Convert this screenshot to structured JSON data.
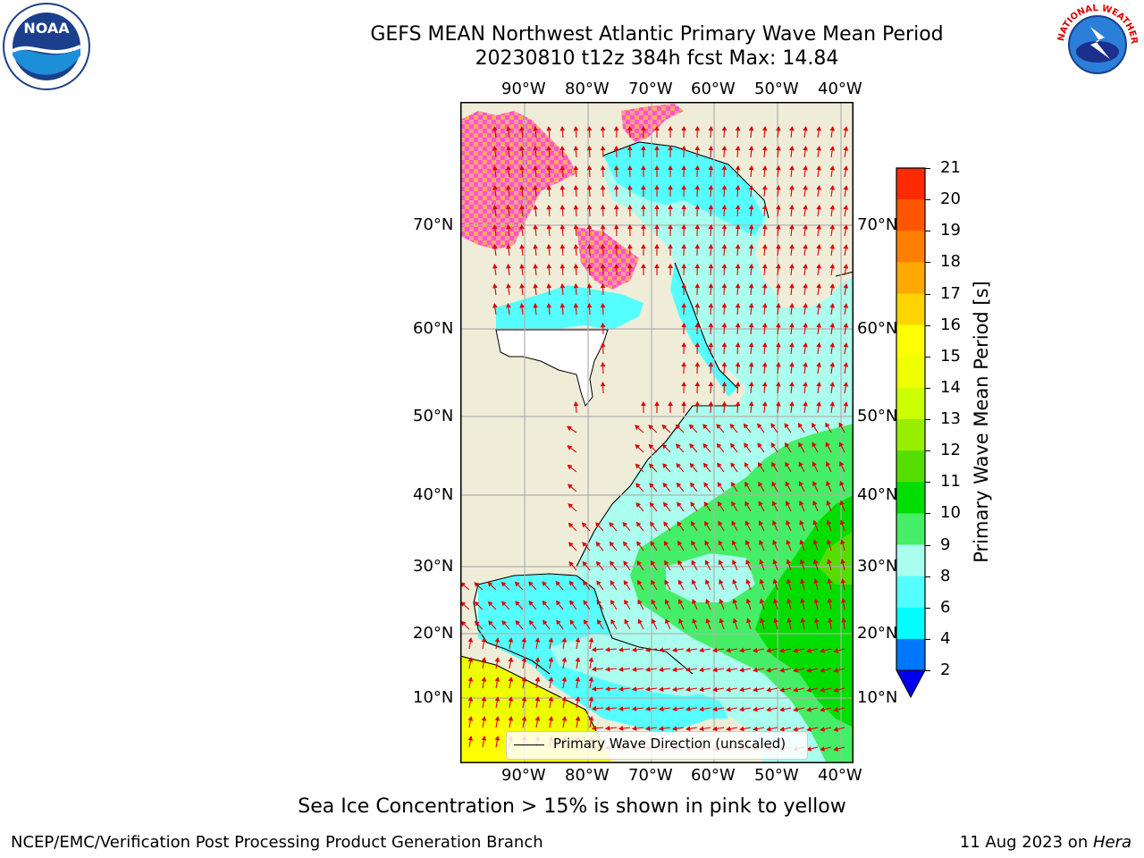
{
  "title_line1": "GEFS MEAN Northwest Atlantic Primary Wave Mean Period",
  "title_line2": "20230810 t12z 384h fcst   Max: 14.84",
  "lon_ticks": [
    "90°W",
    "80°W",
    "70°W",
    "60°W",
    "50°W",
    "40°W"
  ],
  "lat_ticks": [
    "70°N",
    "60°N",
    "50°N",
    "40°N",
    "30°N",
    "20°N",
    "10°N"
  ],
  "colorbar": {
    "label": "Primary Wave Mean Period [s]",
    "ticks": [
      "21",
      "20",
      "19",
      "18",
      "17",
      "16",
      "15",
      "14",
      "13",
      "12",
      "11",
      "10",
      "9",
      "8",
      "6",
      "4",
      "2"
    ],
    "colors": [
      "#ff0000",
      "#ff2a00",
      "#ff5500",
      "#ff7f00",
      "#ffaa00",
      "#ffd400",
      "#ffff00",
      "#eeff00",
      "#ccff00",
      "#99ee00",
      "#55dd00",
      "#00dd00",
      "#44ee66",
      "#aaffee",
      "#55ffff",
      "#00ffff",
      "#0077ff"
    ],
    "extend_color": "#0000ee"
  },
  "legend_text": "Primary Wave Direction (unscaled)",
  "ice_note": "Sea Ice Concentration > 15% is shown in pink to yellow",
  "footer_left": "NCEP/EMC/Verification Post Processing Product Generation Branch",
  "footer_right_date": "11 Aug 2023 on ",
  "footer_right_host": "Hera",
  "logo_left": "NOAA",
  "logo_right": "NATIONAL WEATHER SERVICE"
}
